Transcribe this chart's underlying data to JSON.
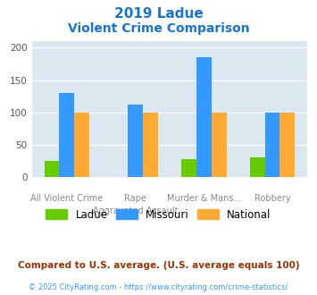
{
  "title_line1": "2019 Ladue",
  "title_line2": "Violent Crime Comparison",
  "title_color": "#1874CD",
  "cat_labels_top": [
    "",
    "Rape",
    "Murder & Mans...",
    ""
  ],
  "cat_labels_bottom": [
    "All Violent Crime",
    "Aggravated Assault",
    "",
    "Robbery"
  ],
  "ladue": [
    25,
    0,
    28,
    30
  ],
  "missouri": [
    130,
    112,
    185,
    100
  ],
  "national": [
    100,
    100,
    100,
    100
  ],
  "ladue_color": "#66cc00",
  "missouri_color": "#3399ff",
  "national_color": "#ffaa33",
  "ylim": [
    0,
    210
  ],
  "yticks": [
    0,
    50,
    100,
    150,
    200
  ],
  "plot_bg": "#dce8f0",
  "legend_labels": [
    "Ladue",
    "Missouri",
    "National"
  ],
  "footnote1": "Compared to U.S. average. (U.S. average equals 100)",
  "footnote2": "© 2025 CityRating.com - https://www.cityrating.com/crime-statistics/",
  "footnote1_color": "#993300",
  "footnote2_color": "#3399ff"
}
